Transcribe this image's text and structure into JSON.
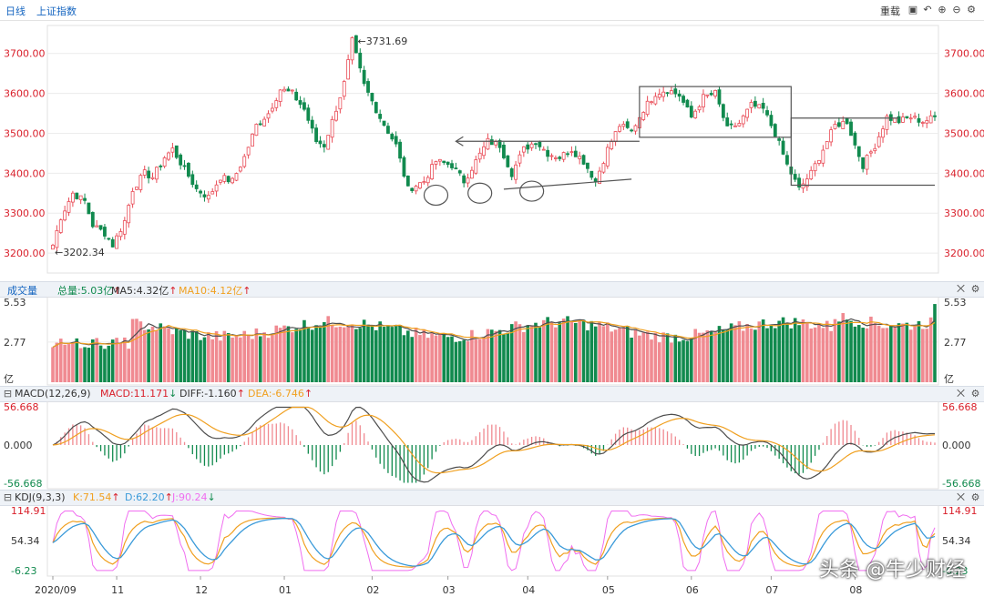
{
  "toolbar": {
    "period": "日线",
    "index_name": "上证指数",
    "reload": "重载",
    "colors": {
      "link": "#1565c0"
    }
  },
  "chart_data": [
    {
      "id": "price",
      "type": "candlestick",
      "title": "上证指数 日线",
      "ylim": [
        3150,
        3770
      ],
      "y_ticks": [
        "3200.00",
        "3300.00",
        "3400.00",
        "3500.00",
        "3600.00",
        "3700.00"
      ],
      "annotations": {
        "high": "3731.69",
        "low": "3202.34",
        "high_label": "←3731.69",
        "low_label": "←3202.34"
      },
      "series_anchors": {
        "x": [
          0,
          2,
          5,
          8,
          10,
          13,
          15,
          18,
          20,
          23,
          25,
          28,
          30,
          33,
          36,
          39,
          42,
          45,
          48,
          51,
          54,
          57,
          60,
          63,
          66,
          68,
          70,
          73,
          75,
          78,
          82,
          86,
          89,
          93,
          96,
          100,
          103,
          106,
          109,
          112,
          115,
          118,
          121,
          124,
          127,
          130,
          133,
          136,
          139,
          142,
          145,
          148,
          151,
          154,
          157,
          160,
          163,
          166,
          169,
          172,
          175,
          178,
          181,
          184,
          187,
          190,
          193,
          196,
          199,
          201,
          203,
          206,
          209,
          212,
          215,
          218,
          221
        ],
        "y": [
          3220,
          3290,
          3350,
          3330,
          3270,
          3250,
          3220,
          3280,
          3360,
          3400,
          3390,
          3440,
          3460,
          3410,
          3360,
          3340,
          3390,
          3380,
          3440,
          3520,
          3550,
          3610,
          3600,
          3560,
          3480,
          3470,
          3530,
          3625,
          3731,
          3620,
          3540,
          3470,
          3360,
          3380,
          3430,
          3420,
          3380,
          3430,
          3480,
          3470,
          3400,
          3460,
          3480,
          3450,
          3440,
          3460,
          3430,
          3380,
          3460,
          3520,
          3505,
          3560,
          3600,
          3610,
          3595,
          3540,
          3590,
          3600,
          3510,
          3525,
          3570,
          3560,
          3500,
          3420,
          3360,
          3400,
          3460,
          3520,
          3530,
          3470,
          3420,
          3470,
          3540,
          3530,
          3540,
          3530,
          3540
        ]
      }
    },
    {
      "id": "volume",
      "type": "bar",
      "title": "成交量",
      "unit": "亿",
      "total": "总量:5.03亿",
      "ma5": "MA5:4.32亿",
      "ma10": "MA10:4.12亿",
      "y_ticks": [
        "5.53",
        "2.77",
        "亿"
      ],
      "ylim": [
        0,
        5.53
      ]
    },
    {
      "id": "macd",
      "type": "bar-line",
      "title": "MACD(12,26,9)",
      "macd": "MACD:11.171",
      "diff": "DIFF:-1.160",
      "dea": "DEA:-6.746",
      "y_ticks": [
        "56.668",
        "0.000",
        "-56.668"
      ],
      "ylim": [
        -56.668,
        56.668
      ]
    },
    {
      "id": "kdj",
      "type": "line",
      "title": "KDJ(9,3,3)",
      "k": "K:71.54",
      "d": "D:62.20",
      "j": "J:90.24",
      "y_ticks": [
        "114.91",
        "54.34",
        "-6.23"
      ],
      "ylim": [
        -6.23,
        114.91
      ],
      "x_ticks": [
        "2020/09",
        "11",
        "12",
        "01",
        "02",
        "03",
        "04",
        "05",
        "06",
        "07",
        "08"
      ]
    }
  ],
  "arrows": {
    "up": "↑",
    "down": "↓"
  },
  "colors": {
    "up": "#e94b56",
    "down": "#118a4e",
    "ma5": "#4d4d4d",
    "ma10": "#f0a020",
    "k": "#f0a020",
    "d": "#3a9ad9",
    "j": "#f06ef0",
    "axis_red": "#d9202b",
    "axis_green": "#118a4e",
    "marker": "#1a73e8"
  },
  "watermark": "头条 @牛少财经"
}
